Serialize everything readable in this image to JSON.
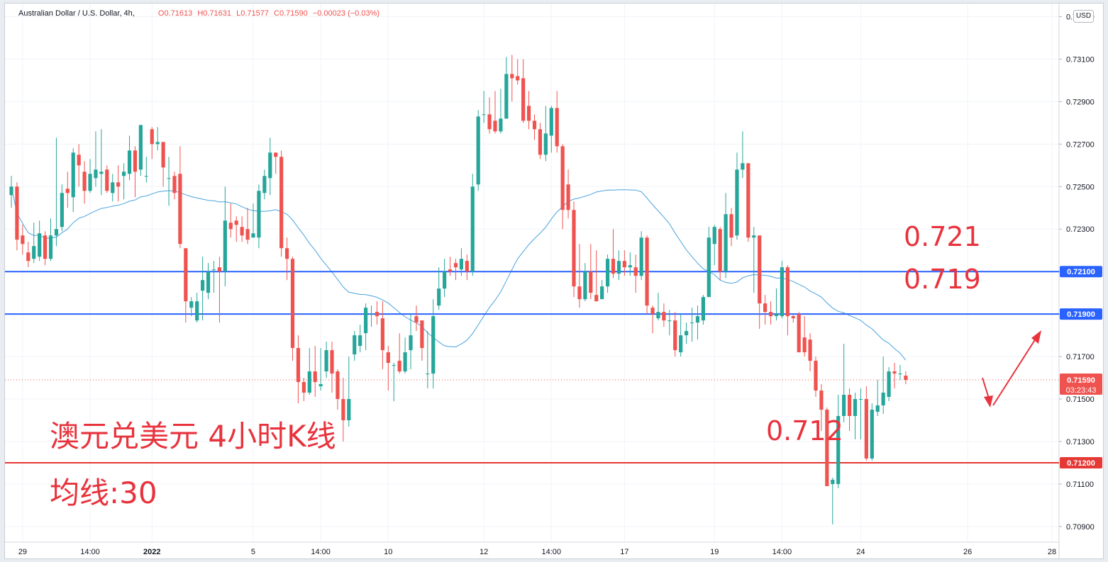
{
  "legend": {
    "symbol": "Australian Dollar / U.S. Dollar, 4h,",
    "open_label": "O",
    "open": "0.71613",
    "high_label": "H",
    "high": "0.71631",
    "low_label": "L",
    "low": "0.71577",
    "close_label": "C",
    "close": "0.71590",
    "change": "−0.00023 (−0.03%)"
  },
  "currency_badge": "USD",
  "annotations": {
    "title": "澳元兑美元 4小时K线",
    "ma_label": "均线:30",
    "level_721": "0.721",
    "level_719": "0.719",
    "level_712": "0.712"
  },
  "price_tags": {
    "line_7210": "0.72100",
    "line_7190": "0.71900",
    "current": "0.71590",
    "countdown": "03:23:43",
    "line_7120": "0.71200"
  },
  "colors": {
    "up": "#26a69a",
    "down": "#ef5350",
    "ma": "#4aa3df",
    "blue_line": "#2962ff",
    "red_line": "#e53935",
    "annotation": "#e8333d"
  },
  "chart_data": {
    "type": "candlestick",
    "timeframe": "4h",
    "symbol": "AUDUSD",
    "ylim": [
      0.7083,
      0.7335
    ],
    "y_ticks": [
      "0.73300",
      "0.73100",
      "0.72900",
      "0.72700",
      "0.72500",
      "0.72300",
      "0.72100",
      "0.71900",
      "0.71700",
      "0.71500",
      "0.71300",
      "0.71100",
      "0.70900"
    ],
    "x_ticks": [
      {
        "label": "29",
        "i": 2
      },
      {
        "label": "14:00",
        "i": 14
      },
      {
        "label": "2022",
        "i": 25
      },
      {
        "label": "5",
        "i": 43
      },
      {
        "label": "14:00",
        "i": 55
      },
      {
        "label": "10",
        "i": 67
      },
      {
        "label": "12",
        "i": 84
      },
      {
        "label": "14:00",
        "i": 96
      },
      {
        "label": "17",
        "i": 109
      },
      {
        "label": "19",
        "i": 125
      },
      {
        "label": "14:00",
        "i": 137
      },
      {
        "label": "24",
        "i": 151
      },
      {
        "label": "26",
        "i": 170
      },
      {
        "label": "28",
        "i": 185
      }
    ],
    "horizontal_lines": [
      {
        "price": 0.721,
        "color": "blue"
      },
      {
        "price": 0.719,
        "color": "blue"
      },
      {
        "price": 0.712,
        "color": "red"
      }
    ],
    "current_price": 0.7159,
    "ma_period": 30,
    "candles": [
      [
        0.7246,
        0.725,
        0.724,
        0.7255
      ],
      [
        0.725,
        0.7225,
        0.722,
        0.7252
      ],
      [
        0.7227,
        0.7223,
        0.7218,
        0.7232
      ],
      [
        0.7219,
        0.7215,
        0.7212,
        0.7224
      ],
      [
        0.7216,
        0.7222,
        0.7214,
        0.7233
      ],
      [
        0.7217,
        0.7228,
        0.7215,
        0.7234
      ],
      [
        0.7227,
        0.7216,
        0.7213,
        0.7229
      ],
      [
        0.7216,
        0.7227,
        0.7215,
        0.7235
      ],
      [
        0.7227,
        0.723,
        0.7222,
        0.7273
      ],
      [
        0.7231,
        0.7247,
        0.7229,
        0.7251
      ],
      [
        0.7249,
        0.7247,
        0.724,
        0.7257
      ],
      [
        0.7245,
        0.7266,
        0.7238,
        0.7268
      ],
      [
        0.7265,
        0.726,
        0.725,
        0.727
      ],
      [
        0.7257,
        0.7248,
        0.7242,
        0.7262
      ],
      [
        0.7248,
        0.7256,
        0.7247,
        0.7263
      ],
      [
        0.7254,
        0.7258,
        0.725,
        0.7276
      ],
      [
        0.7256,
        0.7257,
        0.7246,
        0.7277
      ],
      [
        0.7258,
        0.7248,
        0.7247,
        0.726
      ],
      [
        0.7247,
        0.7252,
        0.7243,
        0.7256
      ],
      [
        0.7252,
        0.725,
        0.7243,
        0.726
      ],
      [
        0.7255,
        0.7257,
        0.7244,
        0.7261
      ],
      [
        0.7256,
        0.7267,
        0.7253,
        0.7274
      ],
      [
        0.7267,
        0.7257,
        0.7245,
        0.7269
      ],
      [
        0.7258,
        0.7279,
        0.7255,
        0.7279
      ],
      [
        0.7255,
        0.7255,
        0.7252,
        0.7264
      ],
      [
        0.7277,
        0.727,
        0.7263,
        0.7278
      ],
      [
        0.727,
        0.7271,
        0.7267,
        0.7278
      ],
      [
        0.7271,
        0.7259,
        0.725,
        0.7271
      ],
      [
        0.7254,
        0.7254,
        0.7241,
        0.7264
      ],
      [
        0.7255,
        0.7247,
        0.7244,
        0.7257
      ],
      [
        0.7256,
        0.7223,
        0.7221,
        0.7269
      ],
      [
        0.7221,
        0.7196,
        0.7186,
        0.7221
      ],
      [
        0.7193,
        0.7196,
        0.7189,
        0.7198
      ],
      [
        0.7187,
        0.7196,
        0.7186,
        0.72
      ],
      [
        0.7201,
        0.7206,
        0.7187,
        0.7217
      ],
      [
        0.72,
        0.721,
        0.7197,
        0.7214
      ],
      [
        0.7211,
        0.7211,
        0.72,
        0.7215
      ],
      [
        0.7212,
        0.721,
        0.7186,
        0.7217
      ],
      [
        0.721,
        0.7234,
        0.7203,
        0.725
      ],
      [
        0.7233,
        0.723,
        0.7226,
        0.7242
      ],
      [
        0.7234,
        0.7232,
        0.7224,
        0.7236
      ],
      [
        0.7231,
        0.7227,
        0.7224,
        0.7236
      ],
      [
        0.723,
        0.7225,
        0.7223,
        0.724
      ],
      [
        0.7226,
        0.7228,
        0.7226,
        0.7242
      ],
      [
        0.7226,
        0.7248,
        0.7221,
        0.7251
      ],
      [
        0.7247,
        0.7255,
        0.7244,
        0.7258
      ],
      [
        0.7254,
        0.7266,
        0.7246,
        0.7273
      ],
      [
        0.7266,
        0.7264,
        0.7256,
        0.7265
      ],
      [
        0.7264,
        0.7221,
        0.7217,
        0.7267
      ],
      [
        0.7221,
        0.7216,
        0.7206,
        0.7226
      ],
      [
        0.7216,
        0.7174,
        0.7168,
        0.7217
      ],
      [
        0.7174,
        0.7158,
        0.7148,
        0.718
      ],
      [
        0.7158,
        0.7153,
        0.7149,
        0.716
      ],
      [
        0.7153,
        0.7163,
        0.7152,
        0.7174
      ],
      [
        0.7163,
        0.7158,
        0.7151,
        0.7175
      ],
      [
        0.7156,
        0.7157,
        0.7154,
        0.7174
      ],
      [
        0.7163,
        0.7173,
        0.716,
        0.7177
      ],
      [
        0.7173,
        0.7162,
        0.7153,
        0.7177
      ],
      [
        0.7163,
        0.715,
        0.7145,
        0.7164
      ],
      [
        0.715,
        0.714,
        0.713,
        0.716
      ],
      [
        0.714,
        0.715,
        0.7137,
        0.717
      ],
      [
        0.7171,
        0.718,
        0.7168,
        0.7182
      ],
      [
        0.7175,
        0.718,
        0.7172,
        0.7185
      ],
      [
        0.7181,
        0.7193,
        0.7173,
        0.7195
      ],
      [
        0.719,
        0.719,
        0.7184,
        0.7194
      ],
      [
        0.7191,
        0.7189,
        0.7185,
        0.7196
      ],
      [
        0.7188,
        0.7173,
        0.7164,
        0.7196
      ],
      [
        0.7172,
        0.7167,
        0.7154,
        0.7175
      ],
      [
        0.7166,
        0.7166,
        0.7149,
        0.7167
      ],
      [
        0.7168,
        0.7163,
        0.7162,
        0.7181
      ],
      [
        0.7163,
        0.7172,
        0.7162,
        0.7179
      ],
      [
        0.7173,
        0.718,
        0.7164,
        0.719
      ],
      [
        0.7189,
        0.7186,
        0.7182,
        0.7194
      ],
      [
        0.7187,
        0.7174,
        0.7168,
        0.7187
      ],
      [
        0.7162,
        0.7162,
        0.7155,
        0.7182
      ],
      [
        0.7162,
        0.7189,
        0.7155,
        0.7197
      ],
      [
        0.7194,
        0.7202,
        0.7192,
        0.7212
      ],
      [
        0.7202,
        0.721,
        0.7198,
        0.7216
      ],
      [
        0.7211,
        0.721,
        0.7208,
        0.7217
      ],
      [
        0.7214,
        0.7212,
        0.7206,
        0.7216
      ],
      [
        0.7211,
        0.7216,
        0.7208,
        0.7221
      ],
      [
        0.7215,
        0.721,
        0.7206,
        0.7218
      ],
      [
        0.721,
        0.725,
        0.7208,
        0.7256
      ],
      [
        0.7251,
        0.7283,
        0.7248,
        0.7286
      ],
      [
        0.7284,
        0.7284,
        0.728,
        0.7295
      ],
      [
        0.7284,
        0.7277,
        0.7275,
        0.7292
      ],
      [
        0.7281,
        0.7276,
        0.7275,
        0.7295
      ],
      [
        0.7276,
        0.7282,
        0.7275,
        0.7296
      ],
      [
        0.7282,
        0.7303,
        0.7282,
        0.7311
      ],
      [
        0.7303,
        0.7301,
        0.729,
        0.7312
      ],
      [
        0.7302,
        0.73,
        0.7298,
        0.731
      ],
      [
        0.7301,
        0.7281,
        0.728,
        0.731
      ],
      [
        0.7288,
        0.7281,
        0.7277,
        0.7295
      ],
      [
        0.7281,
        0.7277,
        0.7272,
        0.7284
      ],
      [
        0.7277,
        0.7265,
        0.7263,
        0.728
      ],
      [
        0.7265,
        0.7275,
        0.7262,
        0.7288
      ],
      [
        0.7274,
        0.7287,
        0.7266,
        0.7288
      ],
      [
        0.7287,
        0.7269,
        0.7266,
        0.7295
      ],
      [
        0.7269,
        0.7239,
        0.723,
        0.727
      ],
      [
        0.7251,
        0.7239,
        0.7235,
        0.7258
      ],
      [
        0.7239,
        0.7203,
        0.7198,
        0.7243
      ],
      [
        0.7203,
        0.7197,
        0.7193,
        0.7223
      ],
      [
        0.7197,
        0.721,
        0.7196,
        0.7214
      ],
      [
        0.721,
        0.72,
        0.7197,
        0.7223
      ],
      [
        0.7199,
        0.7196,
        0.7196,
        0.722
      ],
      [
        0.7197,
        0.7203,
        0.7197,
        0.7206
      ],
      [
        0.7203,
        0.7216,
        0.72,
        0.7218
      ],
      [
        0.7216,
        0.7209,
        0.7207,
        0.723
      ],
      [
        0.7209,
        0.7215,
        0.7206,
        0.722
      ],
      [
        0.7215,
        0.7212,
        0.7208,
        0.722
      ],
      [
        0.7212,
        0.7213,
        0.7208,
        0.7219
      ],
      [
        0.7212,
        0.7208,
        0.72,
        0.7218
      ],
      [
        0.7208,
        0.7226,
        0.7206,
        0.7229
      ],
      [
        0.7226,
        0.7194,
        0.719,
        0.7227
      ],
      [
        0.7193,
        0.719,
        0.7181,
        0.7194
      ],
      [
        0.7188,
        0.7191,
        0.7187,
        0.72
      ],
      [
        0.7191,
        0.7187,
        0.7184,
        0.7195
      ],
      [
        0.7187,
        0.7187,
        0.718,
        0.7192
      ],
      [
        0.7187,
        0.7173,
        0.717,
        0.7191
      ],
      [
        0.7172,
        0.718,
        0.717,
        0.719
      ],
      [
        0.718,
        0.7182,
        0.7176,
        0.7186
      ],
      [
        0.7186,
        0.7186,
        0.7177,
        0.7193
      ],
      [
        0.7186,
        0.7189,
        0.7178,
        0.7194
      ],
      [
        0.7187,
        0.7198,
        0.7185,
        0.7199
      ],
      [
        0.7198,
        0.7226,
        0.7198,
        0.7231
      ],
      [
        0.7223,
        0.7231,
        0.7213,
        0.7232
      ],
      [
        0.723,
        0.721,
        0.7206,
        0.7231
      ],
      [
        0.721,
        0.7237,
        0.7207,
        0.7247
      ],
      [
        0.7237,
        0.7226,
        0.7222,
        0.724
      ],
      [
        0.7227,
        0.7258,
        0.7225,
        0.7266
      ],
      [
        0.7258,
        0.7261,
        0.7254,
        0.7276
      ],
      [
        0.7261,
        0.7226,
        0.7224,
        0.7261
      ],
      [
        0.7226,
        0.7227,
        0.72,
        0.7231
      ],
      [
        0.7227,
        0.7195,
        0.7183,
        0.7227
      ],
      [
        0.7195,
        0.7191,
        0.7185,
        0.7199
      ],
      [
        0.7191,
        0.7189,
        0.7185,
        0.7196
      ],
      [
        0.7189,
        0.719,
        0.7187,
        0.7202
      ],
      [
        0.7189,
        0.7212,
        0.7188,
        0.7215
      ],
      [
        0.7212,
        0.7189,
        0.718,
        0.7213
      ],
      [
        0.7189,
        0.7188,
        0.7186,
        0.719
      ],
      [
        0.719,
        0.7172,
        0.7172,
        0.7191
      ],
      [
        0.7179,
        0.7172,
        0.717,
        0.7189
      ],
      [
        0.7178,
        0.7168,
        0.7163,
        0.7181
      ],
      [
        0.7168,
        0.7154,
        0.7151,
        0.717
      ],
      [
        0.7154,
        0.7145,
        0.7135,
        0.7157
      ],
      [
        0.7145,
        0.7109,
        0.7109,
        0.7146
      ],
      [
        0.711,
        0.7112,
        0.7091,
        0.7113
      ],
      [
        0.711,
        0.7142,
        0.7108,
        0.7152
      ],
      [
        0.7142,
        0.7152,
        0.7139,
        0.7176
      ],
      [
        0.7152,
        0.7142,
        0.7135,
        0.7155
      ],
      [
        0.7142,
        0.715,
        0.7131,
        0.7153
      ],
      [
        0.715,
        0.715,
        0.7131,
        0.7155
      ],
      [
        0.715,
        0.7122,
        0.7121,
        0.7156
      ],
      [
        0.7122,
        0.7145,
        0.7121,
        0.7148
      ],
      [
        0.7144,
        0.7147,
        0.7142,
        0.7159
      ],
      [
        0.7147,
        0.7153,
        0.7143,
        0.717
      ],
      [
        0.7151,
        0.7163,
        0.7149,
        0.7165
      ],
      [
        0.7163,
        0.7162,
        0.7155,
        0.7167
      ],
      [
        0.7162,
        0.7162,
        0.7159,
        0.7166
      ],
      [
        0.7161,
        0.7159,
        0.7157,
        0.7163
      ]
    ]
  }
}
